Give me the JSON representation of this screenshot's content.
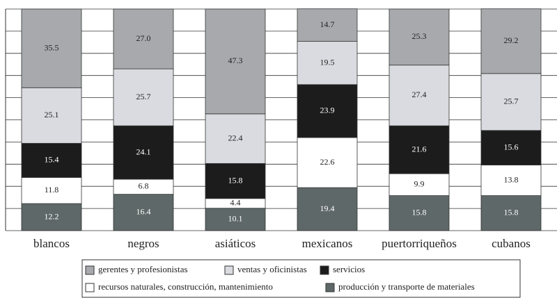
{
  "chart_data": {
    "type": "stacked_bar",
    "categories": [
      "blancos",
      "negros",
      "asiáticos",
      "mexicanos",
      "puertorriqueños",
      "cubanos"
    ],
    "series": [
      {
        "name": "gerentes y profesionistas",
        "color": "#a7a9ac",
        "values": [
          35.5,
          27.0,
          47.3,
          14.7,
          25.3,
          29.2
        ],
        "value_labels": [
          "35.5",
          "27.0",
          "47.3",
          "14.7",
          "25.3",
          "29.2"
        ]
      },
      {
        "name": "ventas y oficinistas",
        "color": "#d9dbe0",
        "values": [
          25.1,
          25.7,
          22.4,
          19.5,
          27.4,
          25.7
        ]
      },
      {
        "name": "servicios",
        "color": "#1c1c1c",
        "values": [
          15.4,
          24.1,
          15.8,
          23.9,
          21.6,
          15.6
        ]
      },
      {
        "name": "recursos naturales, construcción, mantenimiento",
        "color": "#ffffff",
        "values": [
          11.8,
          6.8,
          4.4,
          22.6,
          9.9,
          13.8
        ]
      },
      {
        "name": "producción y transporte de materiales",
        "color": "#5e6868",
        "values": [
          12.2,
          16.4,
          10.1,
          19.4,
          15.8,
          15.8
        ]
      }
    ],
    "ylim": [
      0,
      100
    ],
    "yticks": [
      0,
      10,
      20,
      30,
      40,
      50,
      60,
      70,
      80,
      90,
      100
    ],
    "grid": true
  }
}
